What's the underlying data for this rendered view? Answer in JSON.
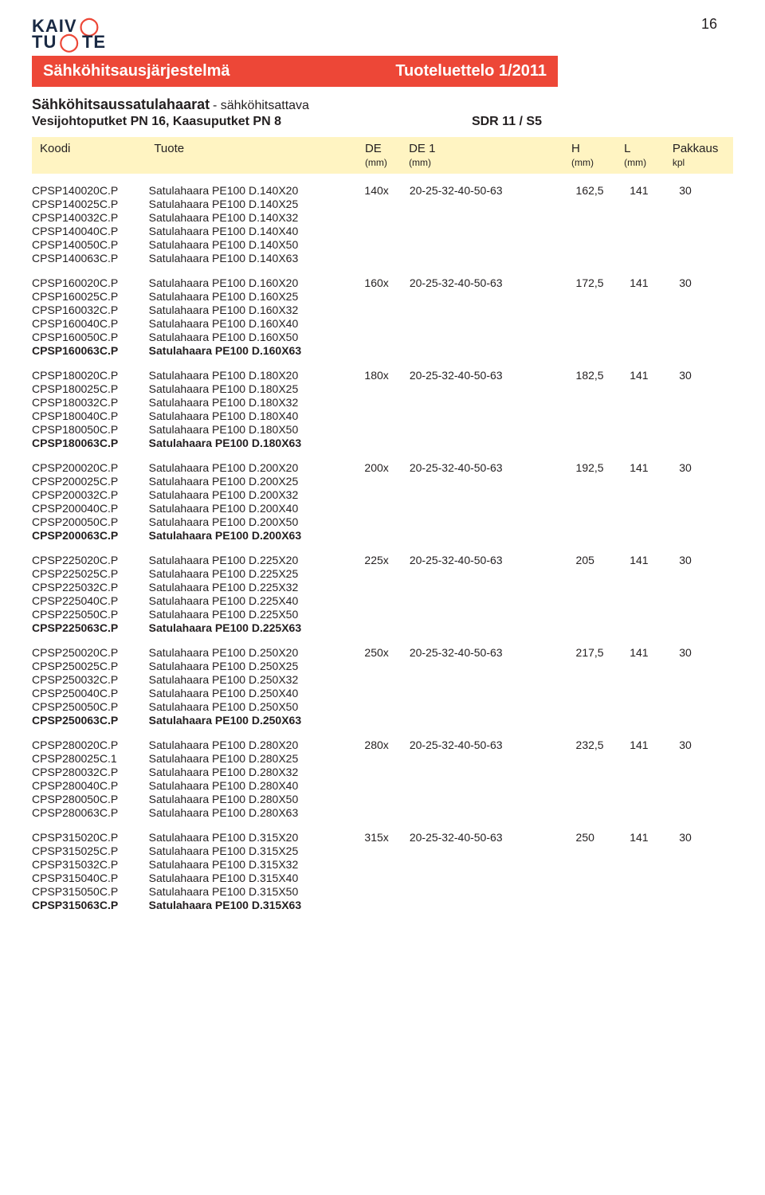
{
  "page_number": "16",
  "logo": {
    "k": "KAIV",
    "t": "TU",
    "o2": "TE"
  },
  "header_bar": {
    "left": "Sähköhitsausjärjestelmä",
    "right": "Tuoteluettelo 1/2011"
  },
  "subtitle": {
    "main": "Sähköhitsaussatulahaarat",
    "note": " - sähköhitsattava",
    "line2_left": "Vesijohtoputket PN 16, Kaasuputket PN 8",
    "line2_right": "SDR 11 / S5"
  },
  "columns": {
    "koodi": "Koodi",
    "tuote": "Tuote",
    "de": "DE",
    "de_sub": "(mm)",
    "de1": "DE 1",
    "de1_sub": "(mm)",
    "h": "H",
    "h_sub": "(mm)",
    "l": "L",
    "l_sub": "(mm)",
    "pak": "Pakkaus",
    "pak_sub": "kpl"
  },
  "groups": [
    {
      "de": "140x",
      "de1": "20-25-32-40-50-63",
      "h": "162,5",
      "l": "141",
      "pak": "30",
      "rows": [
        {
          "koodi": "CPSP140020C.P",
          "tuote": "Satulahaara PE100 D.140X20"
        },
        {
          "koodi": "CPSP140025C.P",
          "tuote": "Satulahaara PE100 D.140X25"
        },
        {
          "koodi": "CPSP140032C.P",
          "tuote": "Satulahaara PE100 D.140X32"
        },
        {
          "koodi": "CPSP140040C.P",
          "tuote": "Satulahaara PE100 D.140X40"
        },
        {
          "koodi": "CPSP140050C.P",
          "tuote": "Satulahaara PE100 D.140X50"
        },
        {
          "koodi": "CPSP140063C.P",
          "tuote": "Satulahaara PE100 D.140X63"
        }
      ]
    },
    {
      "de": "160x",
      "de1": "20-25-32-40-50-63",
      "h": "172,5",
      "l": "141",
      "pak": "30",
      "rows": [
        {
          "koodi": "CPSP160020C.P",
          "tuote": "Satulahaara PE100 D.160X20"
        },
        {
          "koodi": "CPSP160025C.P",
          "tuote": "Satulahaara PE100 D.160X25"
        },
        {
          "koodi": "CPSP160032C.P",
          "tuote": "Satulahaara PE100 D.160X32"
        },
        {
          "koodi": "CPSP160040C.P",
          "tuote": "Satulahaara PE100 D.160X40"
        },
        {
          "koodi": "CPSP160050C.P",
          "tuote": "Satulahaara PE100 D.160X50"
        },
        {
          "koodi": "CPSP160063C.P",
          "tuote": "Satulahaara PE100 D.160X63",
          "bold": true
        }
      ]
    },
    {
      "de": "180x",
      "de1": "20-25-32-40-50-63",
      "h": "182,5",
      "l": "141",
      "pak": "30",
      "rows": [
        {
          "koodi": "CPSP180020C.P",
          "tuote": "Satulahaara PE100 D.180X20"
        },
        {
          "koodi": "CPSP180025C.P",
          "tuote": "Satulahaara PE100 D.180X25"
        },
        {
          "koodi": "CPSP180032C.P",
          "tuote": "Satulahaara PE100 D.180X32"
        },
        {
          "koodi": "CPSP180040C.P",
          "tuote": "Satulahaara PE100 D.180X40"
        },
        {
          "koodi": "CPSP180050C.P",
          "tuote": "Satulahaara PE100 D.180X50"
        },
        {
          "koodi": "CPSP180063C.P",
          "tuote": "Satulahaara PE100 D.180X63",
          "bold": true
        }
      ]
    },
    {
      "de": "200x",
      "de1": "20-25-32-40-50-63",
      "h": "192,5",
      "l": "141",
      "pak": "30",
      "rows": [
        {
          "koodi": "CPSP200020C.P",
          "tuote": "Satulahaara PE100 D.200X20"
        },
        {
          "koodi": "CPSP200025C.P",
          "tuote": "Satulahaara PE100 D.200X25"
        },
        {
          "koodi": "CPSP200032C.P",
          "tuote": "Satulahaara PE100 D.200X32"
        },
        {
          "koodi": "CPSP200040C.P",
          "tuote": "Satulahaara PE100 D.200X40"
        },
        {
          "koodi": "CPSP200050C.P",
          "tuote": "Satulahaara PE100 D.200X50"
        },
        {
          "koodi": "CPSP200063C.P",
          "tuote": "Satulahaara PE100 D.200X63",
          "bold": true
        }
      ]
    },
    {
      "de": "225x",
      "de1": "20-25-32-40-50-63",
      "h": "205",
      "l": "141",
      "pak": "30",
      "rows": [
        {
          "koodi": "CPSP225020C.P",
          "tuote": "Satulahaara PE100 D.225X20"
        },
        {
          "koodi": "CPSP225025C.P",
          "tuote": "Satulahaara PE100 D.225X25"
        },
        {
          "koodi": "CPSP225032C.P",
          "tuote": "Satulahaara PE100 D.225X32"
        },
        {
          "koodi": "CPSP225040C.P",
          "tuote": "Satulahaara PE100 D.225X40"
        },
        {
          "koodi": "CPSP225050C.P",
          "tuote": "Satulahaara PE100 D.225X50"
        },
        {
          "koodi": "CPSP225063C.P",
          "tuote": "Satulahaara PE100 D.225X63",
          "bold": true
        }
      ]
    },
    {
      "de": "250x",
      "de1": "20-25-32-40-50-63",
      "h": "217,5",
      "l": "141",
      "pak": "30",
      "rows": [
        {
          "koodi": "CPSP250020C.P",
          "tuote": "Satulahaara PE100 D.250X20"
        },
        {
          "koodi": "CPSP250025C.P",
          "tuote": "Satulahaara PE100 D.250X25"
        },
        {
          "koodi": "CPSP250032C.P",
          "tuote": "Satulahaara PE100 D.250X32"
        },
        {
          "koodi": "CPSP250040C.P",
          "tuote": "Satulahaara PE100 D.250X40"
        },
        {
          "koodi": "CPSP250050C.P",
          "tuote": "Satulahaara PE100 D.250X50"
        },
        {
          "koodi": "CPSP250063C.P",
          "tuote": "Satulahaara PE100 D.250X63",
          "bold": true
        }
      ]
    },
    {
      "de": "280x",
      "de1": "20-25-32-40-50-63",
      "h": "232,5",
      "l": "141",
      "pak": "30",
      "rows": [
        {
          "koodi": "CPSP280020C.P",
          "tuote": "Satulahaara PE100 D.280X20"
        },
        {
          "koodi": "CPSP280025C.1",
          "tuote": "Satulahaara PE100 D.280X25"
        },
        {
          "koodi": "CPSP280032C.P",
          "tuote": "Satulahaara PE100 D.280X32"
        },
        {
          "koodi": "CPSP280040C.P",
          "tuote": "Satulahaara PE100 D.280X40"
        },
        {
          "koodi": "CPSP280050C.P",
          "tuote": "Satulahaara PE100 D.280X50"
        },
        {
          "koodi": "CPSP280063C.P",
          "tuote": "Satulahaara PE100 D.280X63"
        }
      ]
    },
    {
      "de": "315x",
      "de1": "20-25-32-40-50-63",
      "h": "250",
      "l": "141",
      "pak": "30",
      "rows": [
        {
          "koodi": "CPSP315020C.P",
          "tuote": "Satulahaara PE100 D.315X20"
        },
        {
          "koodi": "CPSP315025C.P",
          "tuote": "Satulahaara PE100 D.315X25"
        },
        {
          "koodi": "CPSP315032C.P",
          "tuote": "Satulahaara PE100 D.315X32"
        },
        {
          "koodi": "CPSP315040C.P",
          "tuote": "Satulahaara PE100 D.315X40"
        },
        {
          "koodi": "CPSP315050C.P",
          "tuote": "Satulahaara PE100 D.315X50"
        },
        {
          "koodi": "CPSP315063C.P",
          "tuote": "Satulahaara PE100 D.315X63",
          "bold": true
        }
      ]
    }
  ]
}
